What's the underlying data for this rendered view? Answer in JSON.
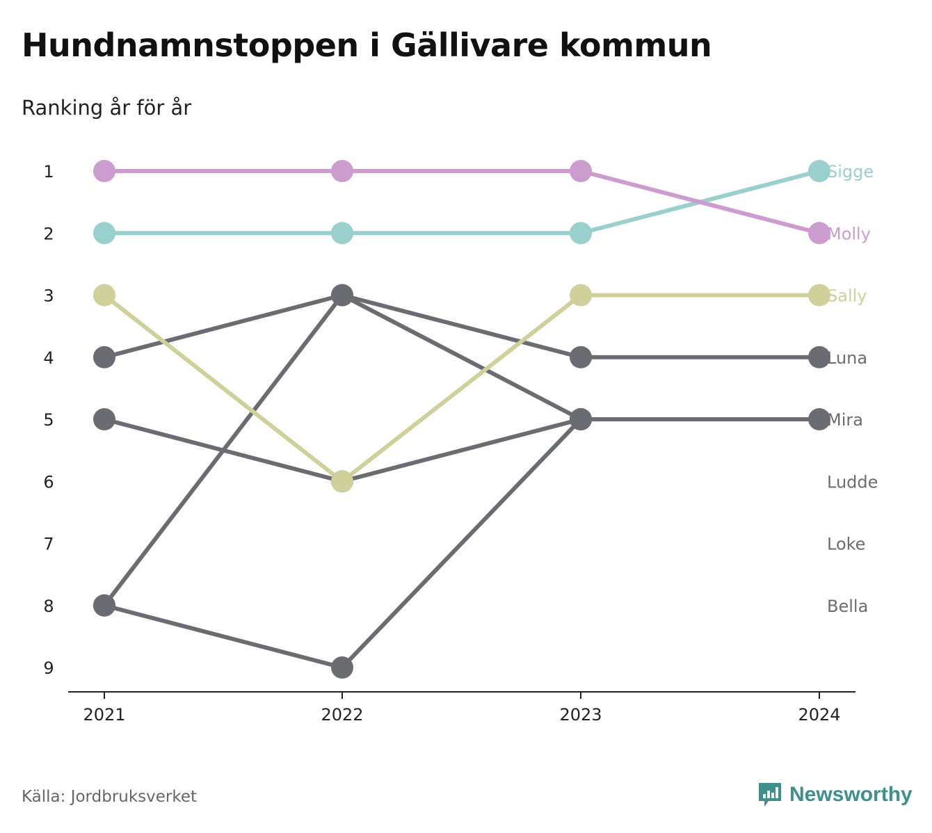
{
  "header": {
    "title": "Hundnamnstoppen i Gällivare kommun",
    "subtitle": "Ranking år för år"
  },
  "footer": {
    "source": "Källa: Jordbruksverket",
    "brand": "Newsworthy",
    "brand_icon": "bar-chart-speech-bubble-icon",
    "brand_color": "#3f8f8c"
  },
  "chart_data": {
    "type": "line",
    "subtype": "bump",
    "x": [
      "2021",
      "2022",
      "2023",
      "2024"
    ],
    "y_ticks": [
      "1",
      "2",
      "3",
      "4",
      "5",
      "6",
      "7",
      "8",
      "9"
    ],
    "y_reversed": true,
    "grid": false,
    "legend": "direct labels at right",
    "series": [
      {
        "name": "Sigge",
        "color": "#99cfcd",
        "ranks": [
          2,
          2,
          2,
          1
        ]
      },
      {
        "name": "Molly",
        "color": "#cc9ccf",
        "ranks": [
          1,
          1,
          1,
          2
        ]
      },
      {
        "name": "Sally",
        "color": "#d0d09a",
        "ranks": [
          3,
          6,
          3,
          3
        ]
      },
      {
        "name": "Luna",
        "color": "#6b6b72",
        "ranks": [
          4,
          3,
          4,
          4
        ]
      },
      {
        "name": "Mira",
        "color": "#6b6b72",
        "ranks": [
          8,
          3,
          5,
          5
        ]
      },
      {
        "name": "Ludde",
        "color": "#6b6b72",
        "ranks": [
          5,
          6,
          5,
          null
        ]
      },
      {
        "name": "Loke",
        "color": "#6b6b72",
        "ranks": [
          8,
          9,
          5,
          null
        ]
      },
      {
        "name": "Bella",
        "color": "#6b6b72",
        "ranks": [
          null,
          null,
          null,
          null
        ]
      }
    ]
  }
}
